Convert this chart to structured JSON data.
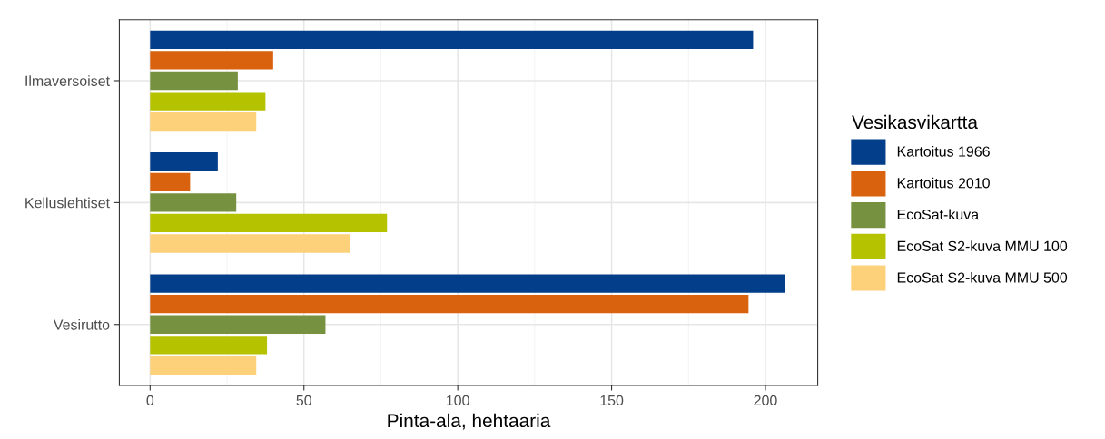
{
  "chart_data": {
    "type": "bar",
    "orientation": "horizontal",
    "xlabel": "Pinta-ala, hehtaaria",
    "legend_title": "Vesikasvikartta",
    "legend": "right",
    "categories": [
      "Ilmaversoiset",
      "Kelluslehtiset",
      "Vesirutto"
    ],
    "series": [
      {
        "name": "Kartoitus 1966",
        "color": "#023e8a",
        "values": [
          196,
          22,
          206.5
        ]
      },
      {
        "name": "Kartoitus 2010",
        "color": "#d9620e",
        "values": [
          40,
          13,
          194.5
        ]
      },
      {
        "name": "EcoSat-kuva",
        "color": "#76913f",
        "values": [
          28.5,
          28,
          57
        ]
      },
      {
        "name": "EcoSat S2-kuva MMU 100",
        "color": "#b5c200",
        "values": [
          37.5,
          77,
          38
        ]
      },
      {
        "name": "EcoSat S2-kuva MMU 500",
        "color": "#fdd07a",
        "values": [
          34.5,
          65,
          34.5
        ]
      }
    ],
    "xlim": [
      -10,
      217
    ],
    "xticks": [
      0,
      50,
      100,
      150,
      200
    ],
    "grid": true
  }
}
